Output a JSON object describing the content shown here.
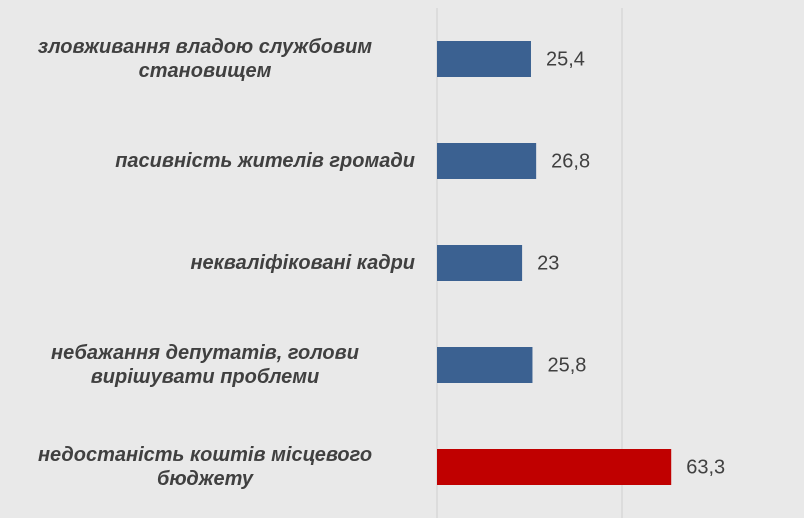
{
  "chart_data": {
    "type": "bar",
    "orientation": "horizontal",
    "categories": [
      "зловживання владою службовим становищем",
      "пасивність жителів громади",
      "некваліфіковані кадри",
      "небажання депутатів, голови вирішувати проблеми",
      "недостаність коштів місцевого бюджету"
    ],
    "values": [
      25.4,
      26.8,
      23,
      25.8,
      63.3
    ],
    "value_labels": [
      "25,4",
      "26,8",
      "23",
      "25,8",
      "63,3"
    ],
    "colors": [
      "#3b6191",
      "#3b6191",
      "#3b6191",
      "#3b6191",
      "#c00000"
    ],
    "xlim": [
      0,
      100
    ],
    "xticks": [
      0,
      50
    ],
    "grid": true
  }
}
